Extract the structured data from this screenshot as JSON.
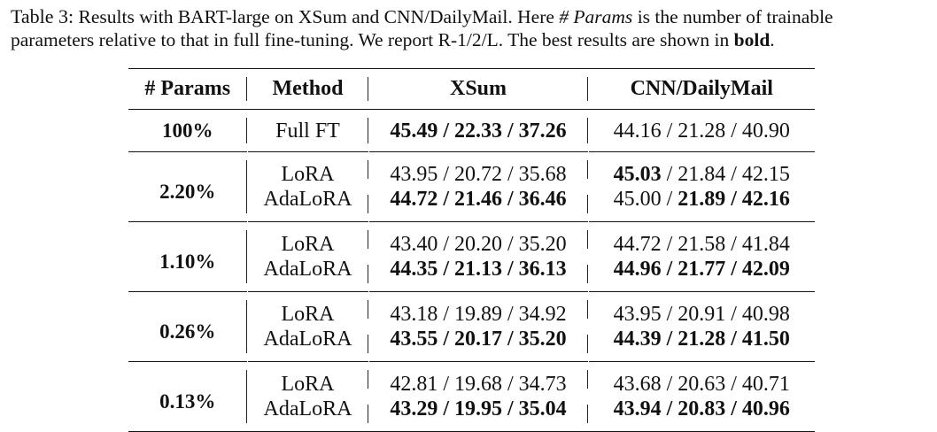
{
  "caption": {
    "label": "Table 3:",
    "text_1": " Results with BART-large on XSum and CNN/DailyMail. Here ",
    "italic_term": "# Params",
    "text_2": " is the number of trainable",
    "text_3": "parameters relative to that in full fine-tuning. We report R-1/2/L. The best results are shown in ",
    "bold_word": "bold",
    "text_4": "."
  },
  "table": {
    "headers": {
      "params": "# Params",
      "method": "Method",
      "xsum": "XSum",
      "cnn": "CNN/DailyMail"
    },
    "rows": [
      {
        "params": "100%",
        "method": "Full FT",
        "xsum": [
          {
            "value": "45.49",
            "bold": true
          },
          {
            "value": "22.33",
            "bold": true
          },
          {
            "value": "37.26",
            "bold": true
          }
        ],
        "cnn": [
          {
            "value": "44.16",
            "bold": false
          },
          {
            "value": "21.28",
            "bold": false
          },
          {
            "value": "40.90",
            "bold": false
          }
        ]
      },
      {
        "params": "2.20%",
        "method": "LoRA",
        "xsum": [
          {
            "value": "43.95",
            "bold": false
          },
          {
            "value": "20.72",
            "bold": false
          },
          {
            "value": "35.68",
            "bold": false
          }
        ],
        "cnn": [
          {
            "value": "45.03",
            "bold": true
          },
          {
            "value": "21.84",
            "bold": false
          },
          {
            "value": "42.15",
            "bold": false
          }
        ]
      },
      {
        "params": "2.20%",
        "method": "AdaLoRA",
        "xsum": [
          {
            "value": "44.72",
            "bold": true
          },
          {
            "value": "21.46",
            "bold": true
          },
          {
            "value": "36.46",
            "bold": true
          }
        ],
        "cnn": [
          {
            "value": "45.00",
            "bold": false
          },
          {
            "value": "21.89",
            "bold": true
          },
          {
            "value": "42.16",
            "bold": true
          }
        ]
      },
      {
        "params": "1.10%",
        "method": "LoRA",
        "xsum": [
          {
            "value": "43.40",
            "bold": false
          },
          {
            "value": "20.20",
            "bold": false
          },
          {
            "value": "35.20",
            "bold": false
          }
        ],
        "cnn": [
          {
            "value": "44.72",
            "bold": false
          },
          {
            "value": "21.58",
            "bold": false
          },
          {
            "value": "41.84",
            "bold": false
          }
        ]
      },
      {
        "params": "1.10%",
        "method": "AdaLoRA",
        "xsum": [
          {
            "value": "44.35",
            "bold": true
          },
          {
            "value": "21.13",
            "bold": true
          },
          {
            "value": "36.13",
            "bold": true
          }
        ],
        "cnn": [
          {
            "value": "44.96",
            "bold": true
          },
          {
            "value": "21.77",
            "bold": true
          },
          {
            "value": "42.09",
            "bold": true
          }
        ]
      },
      {
        "params": "0.26%",
        "method": "LoRA",
        "xsum": [
          {
            "value": "43.18",
            "bold": false
          },
          {
            "value": "19.89",
            "bold": false
          },
          {
            "value": "34.92",
            "bold": false
          }
        ],
        "cnn": [
          {
            "value": "43.95",
            "bold": false
          },
          {
            "value": "20.91",
            "bold": false
          },
          {
            "value": "40.98",
            "bold": false
          }
        ]
      },
      {
        "params": "0.26%",
        "method": "AdaLoRA",
        "xsum": [
          {
            "value": "43.55",
            "bold": true
          },
          {
            "value": "20.17",
            "bold": true
          },
          {
            "value": "35.20",
            "bold": true
          }
        ],
        "cnn": [
          {
            "value": "44.39",
            "bold": true
          },
          {
            "value": "21.28",
            "bold": true
          },
          {
            "value": "41.50",
            "bold": true
          }
        ]
      },
      {
        "params": "0.13%",
        "method": "LoRA",
        "xsum": [
          {
            "value": "42.81",
            "bold": false
          },
          {
            "value": "19.68",
            "bold": false
          },
          {
            "value": "34.73",
            "bold": false
          }
        ],
        "cnn": [
          {
            "value": "43.68",
            "bold": false
          },
          {
            "value": "20.63",
            "bold": false
          },
          {
            "value": "40.71",
            "bold": false
          }
        ]
      },
      {
        "params": "0.13%",
        "method": "AdaLoRA",
        "xsum": [
          {
            "value": "43.29",
            "bold": true
          },
          {
            "value": "19.95",
            "bold": true
          },
          {
            "value": "35.04",
            "bold": true
          }
        ],
        "cnn": [
          {
            "value": "43.94",
            "bold": true
          },
          {
            "value": "20.83",
            "bold": true
          },
          {
            "value": "40.96",
            "bold": true
          }
        ]
      }
    ]
  }
}
